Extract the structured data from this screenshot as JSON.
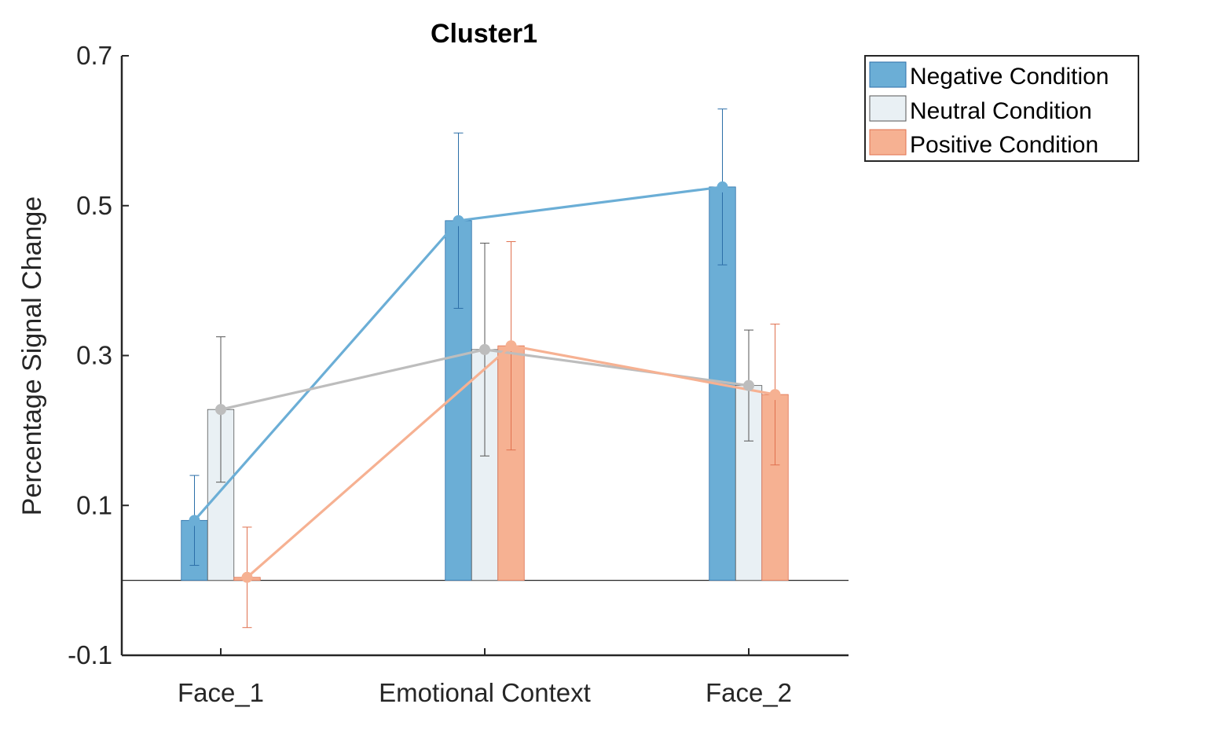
{
  "chart_data": {
    "type": "bar",
    "title": "Cluster1",
    "xlabel": "",
    "ylabel": "Percentage Signal Change",
    "ylim": [
      -0.1,
      0.7
    ],
    "yticks": [
      {
        "value": -0.1,
        "label": "-0.1"
      },
      {
        "value": 0.1,
        "label": "0.1"
      },
      {
        "value": 0.3,
        "label": "0.3"
      },
      {
        "value": 0.5,
        "label": "0.5"
      },
      {
        "value": 0.7,
        "label": "0.7"
      }
    ],
    "categories": [
      "Face_1",
      "Emotional Context",
      "Face_2"
    ],
    "series": [
      {
        "name": "Negative Condition",
        "values": [
          0.08,
          0.48,
          0.525
        ],
        "errors": [
          0.06,
          0.117,
          0.104
        ],
        "fill": "#6BAED6",
        "line": "#6BAED6",
        "errorbar": "#2C6FA8"
      },
      {
        "name": "Neutral Condition",
        "values": [
          0.228,
          0.308,
          0.26
        ],
        "errors": [
          0.097,
          0.142,
          0.074
        ],
        "fill": "#E9F0F4",
        "line": "#BDBDBD",
        "errorbar": "#555555"
      },
      {
        "name": "Positive Condition",
        "values": [
          0.004,
          0.313,
          0.248
        ],
        "errors": [
          0.067,
          0.139,
          0.094
        ],
        "fill": "#F6B192",
        "line": "#F6B192",
        "errorbar": "#E0714F"
      }
    ],
    "legend_position": "outside top-right",
    "grid": false,
    "zero_line": true
  }
}
